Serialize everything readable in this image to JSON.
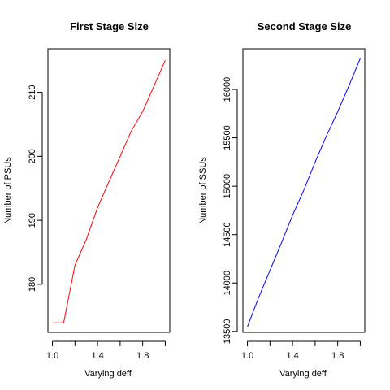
{
  "chart_data": [
    {
      "type": "line",
      "title": "First Stage Size",
      "xlabel": "Varying deff",
      "ylabel": "Number of PSUs",
      "xlim": [
        0.96,
        2.04
      ],
      "ylim": [
        172.5,
        216.8
      ],
      "xticks": [
        1.0,
        1.4,
        1.8
      ],
      "xtick_labels": [
        "1.0",
        "1.4",
        "1.8"
      ],
      "yticks": [
        180,
        190,
        200,
        210
      ],
      "ytick_labels": [
        "180",
        "190",
        "200",
        "210"
      ],
      "grid": false,
      "color": "#ff0000",
      "x": [
        1.0,
        1.1,
        1.2,
        1.3,
        1.4,
        1.5,
        1.6,
        1.7,
        1.8,
        1.9,
        2.0
      ],
      "y": [
        174,
        174,
        183,
        187,
        192,
        196,
        200,
        204,
        207,
        211,
        215
      ]
    },
    {
      "type": "line",
      "title": "Second Stage Size",
      "xlabel": "Varying deff",
      "ylabel": "Number of SSUs",
      "xlim": [
        0.96,
        2.04
      ],
      "ylim": [
        13490,
        16420
      ],
      "xticks": [
        1.0,
        1.4,
        1.8
      ],
      "xtick_labels": [
        "1.0",
        "1.4",
        "1.8"
      ],
      "yticks": [
        13500,
        14000,
        14500,
        15000,
        15500,
        16000
      ],
      "ytick_labels": [
        "13500",
        "14000",
        "14500",
        "15000",
        "15500",
        "16000"
      ],
      "grid": false,
      "color": "#0000ff",
      "x": [
        1.0,
        1.1,
        1.2,
        1.3,
        1.4,
        1.5,
        1.6,
        1.7,
        1.8,
        1.9,
        2.0
      ],
      "y": [
        13550,
        13850,
        14130,
        14410,
        14700,
        14960,
        15250,
        15520,
        15770,
        16040,
        16320
      ]
    }
  ]
}
